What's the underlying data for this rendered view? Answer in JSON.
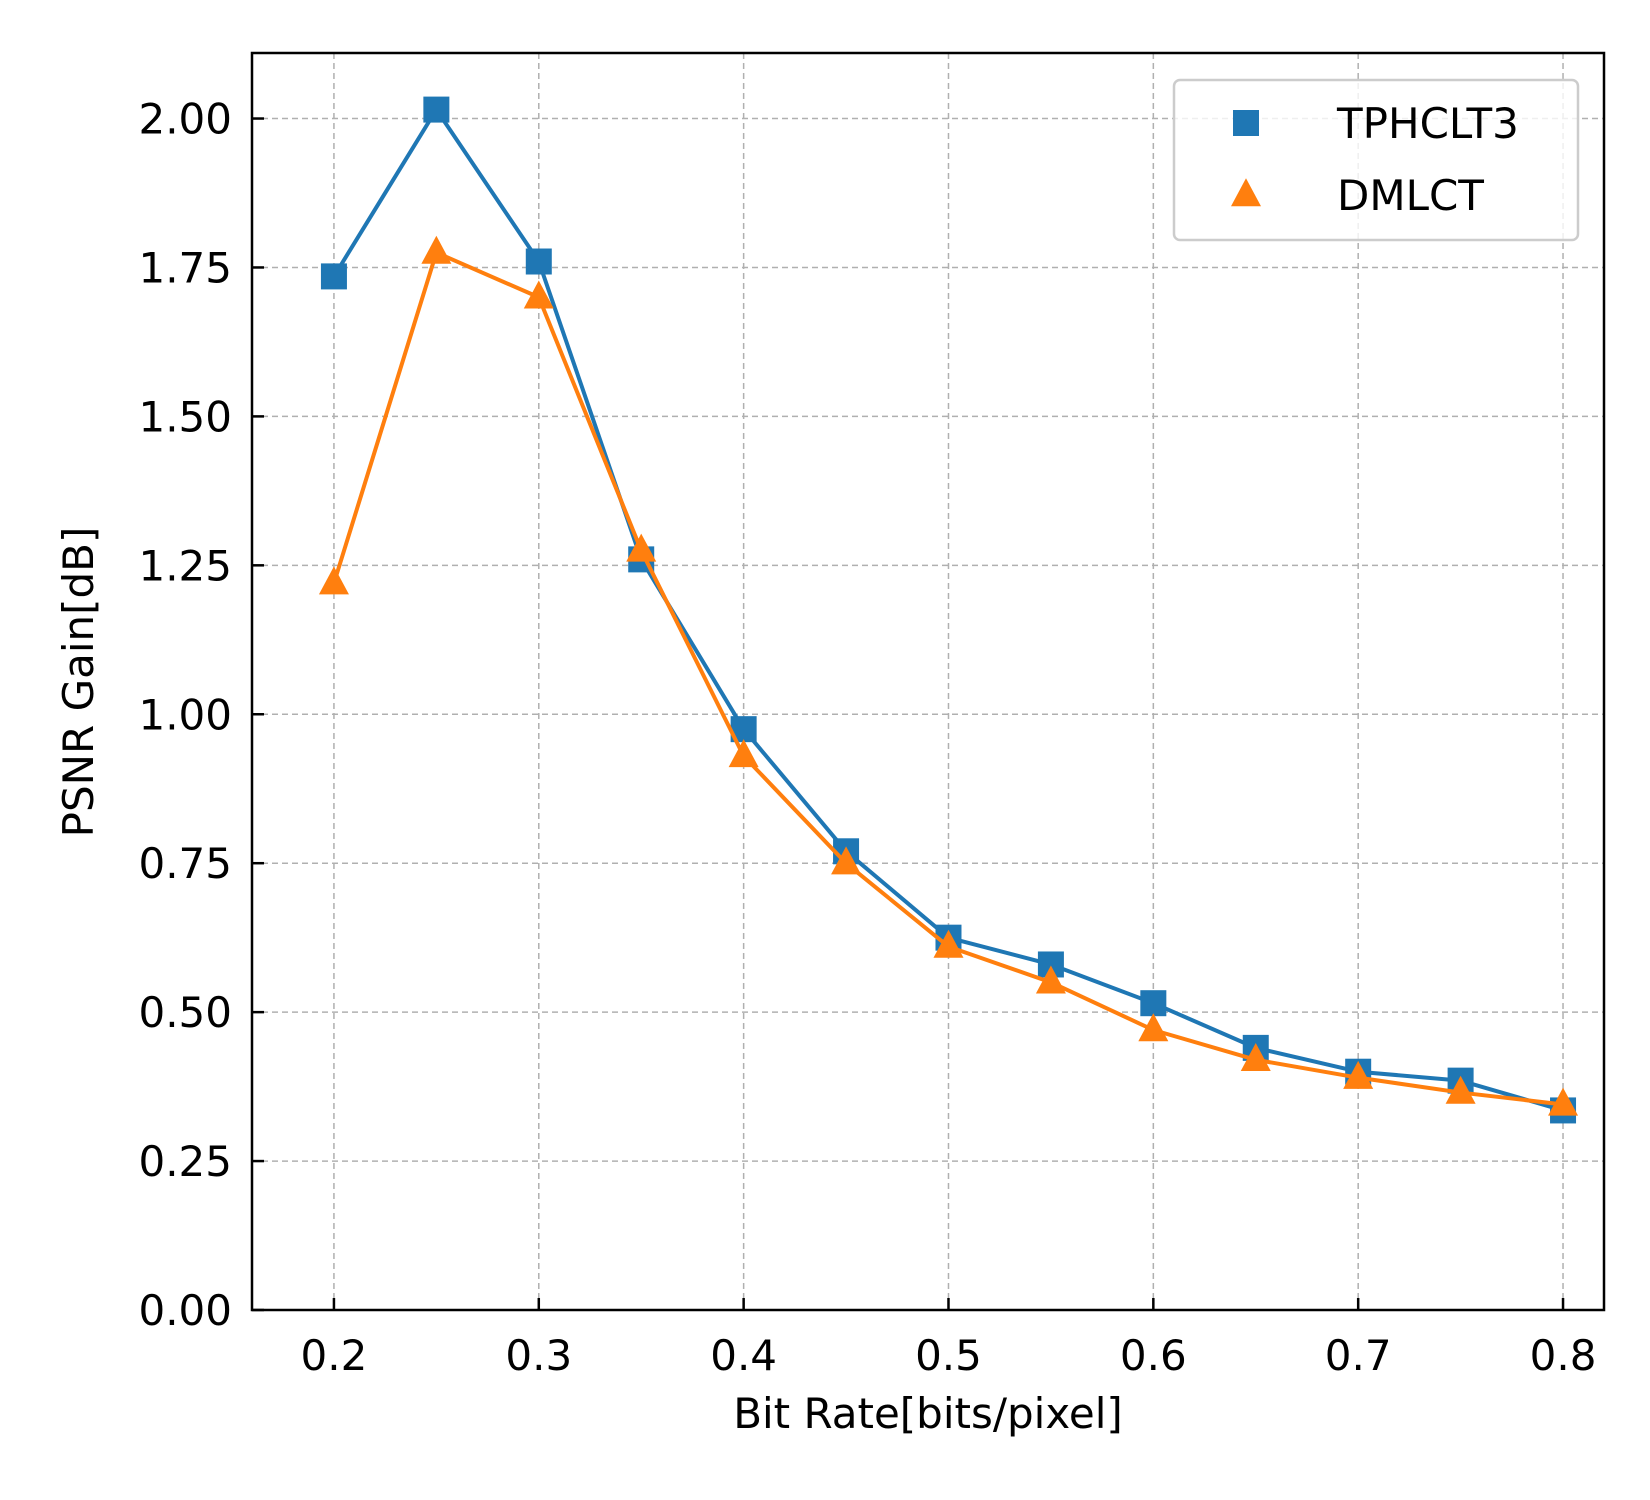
{
  "chart_data": {
    "type": "line",
    "title": "",
    "xlabel": "Bit Rate[bits/pixel]",
    "ylabel": "PSNR Gain[dB]",
    "xlim": [
      0.16,
      0.82
    ],
    "ylim": [
      0.0,
      2.11
    ],
    "xticks": [
      0.2,
      0.3,
      0.4,
      0.5,
      0.6,
      0.7,
      0.8
    ],
    "xtick_labels": [
      "0.2",
      "0.3",
      "0.4",
      "0.5",
      "0.6",
      "0.7",
      "0.8"
    ],
    "yticks": [
      0.0,
      0.25,
      0.5,
      0.75,
      1.0,
      1.25,
      1.5,
      1.75,
      2.0
    ],
    "ytick_labels": [
      "0.00",
      "0.25",
      "0.50",
      "0.75",
      "1.00",
      "1.25",
      "1.50",
      "1.75",
      "2.00"
    ],
    "grid": true,
    "legend_position": "top-right",
    "x": [
      0.2,
      0.25,
      0.3,
      0.35,
      0.4,
      0.45,
      0.5,
      0.55,
      0.6,
      0.65,
      0.7,
      0.75,
      0.8
    ],
    "series": [
      {
        "name": "TPHCLT3",
        "marker": "square",
        "color": "#1f77b4",
        "values": [
          1.735,
          2.015,
          1.76,
          1.26,
          0.975,
          0.77,
          0.625,
          0.58,
          0.515,
          0.44,
          0.4,
          0.385,
          0.335
        ]
      },
      {
        "name": "DMLCT",
        "marker": "triangle",
        "color": "#ff7f0e",
        "values": [
          1.22,
          1.775,
          1.7,
          1.275,
          0.93,
          0.75,
          0.61,
          0.55,
          0.47,
          0.42,
          0.39,
          0.365,
          0.345
        ]
      }
    ]
  }
}
